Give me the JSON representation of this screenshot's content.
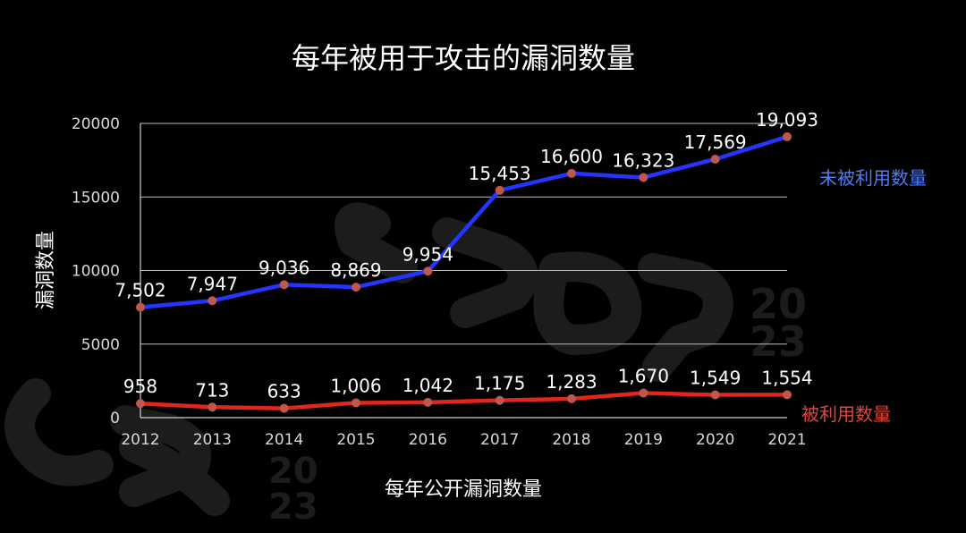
{
  "watermark": "CSOP 2023",
  "chart_data": {
    "type": "line",
    "title": "每年被用于攻击的漏洞数量",
    "xlabel": "每年公开漏洞数量",
    "ylabel": "漏洞数量",
    "categories": [
      "2012",
      "2013",
      "2014",
      "2015",
      "2016",
      "2017",
      "2018",
      "2019",
      "2020",
      "2021"
    ],
    "ylim": [
      0,
      20000
    ],
    "yticks": [
      0,
      5000,
      10000,
      15000,
      20000
    ],
    "ytick_labels": [
      "0",
      "5000",
      "10000",
      "15000",
      "20000"
    ],
    "grid": true,
    "series": [
      {
        "name": "未被利用数量",
        "color": "#2535ff",
        "marker_color": "#c0574a",
        "label_color": "#4d7ef7",
        "values": [
          7502,
          7947,
          9036,
          8869,
          9954,
          15453,
          16600,
          16323,
          17569,
          19093
        ],
        "labels": [
          "7,502",
          "7,947",
          "9,036",
          "8,869",
          "9,954",
          "15,453",
          "16,600",
          "16,323",
          "17,569",
          "19,093"
        ]
      },
      {
        "name": "被利用数量",
        "color": "#e2261b",
        "marker_color": "#c0574a",
        "label_color": "#e2453a",
        "values": [
          958,
          713,
          633,
          1006,
          1042,
          1175,
          1283,
          1670,
          1549,
          1554
        ],
        "labels": [
          "958",
          "713",
          "633",
          "1,006",
          "1,042",
          "1,175",
          "1,283",
          "1,670",
          "1,549",
          "1,554"
        ]
      }
    ]
  }
}
